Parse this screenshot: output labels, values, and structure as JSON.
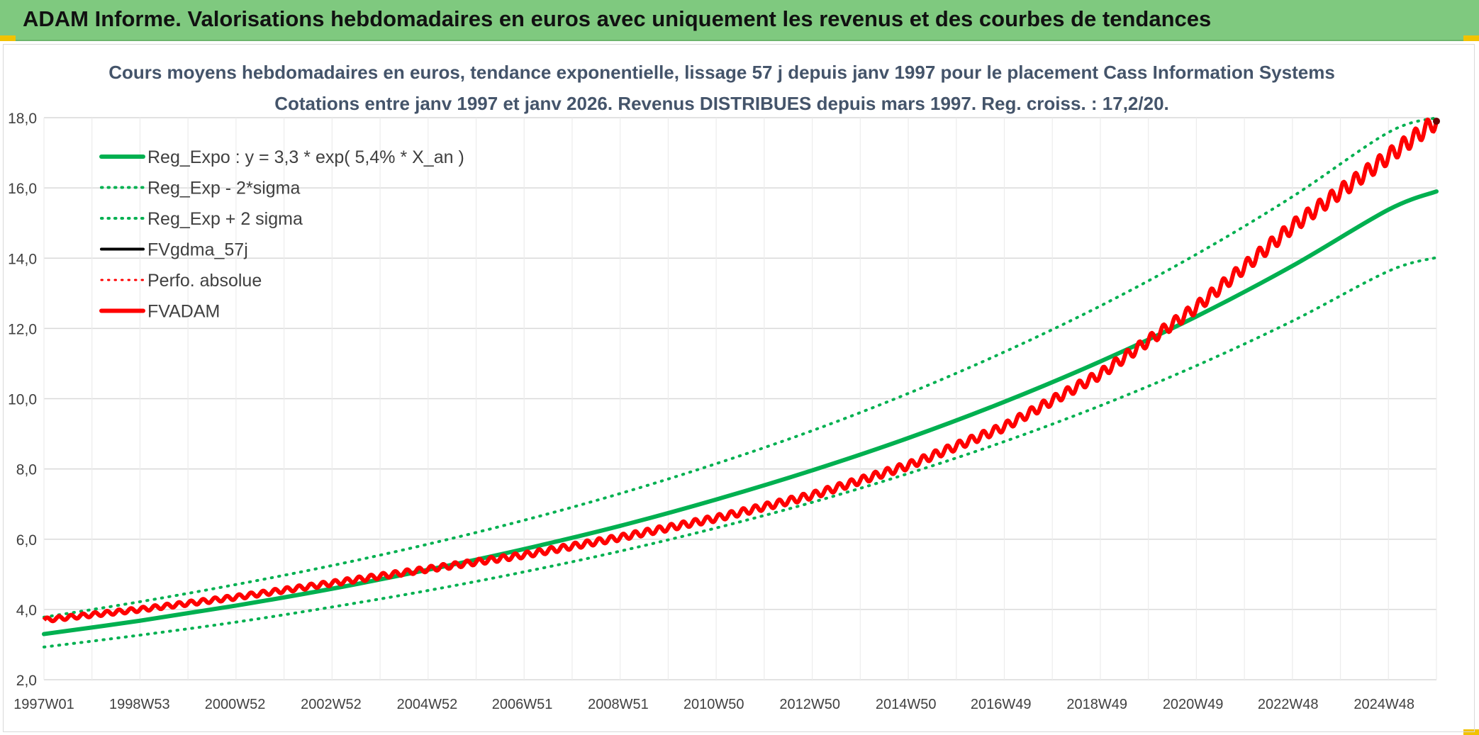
{
  "banner": {
    "title": "ADAM Informe. Valorisations hebdomadaires en euros avec uniquement les revenus et des courbes de tendances",
    "background": "#7fc97f"
  },
  "chart_data": {
    "type": "line",
    "title": "Cours moyens hebdomadaires en euros, tendance exponentielle, lissage 57 j depuis janv 1997 pour le placement Cass Information Systems",
    "subtitle": "Cotations entre janv 1997 et janv 2026. Revenus DISTRIBUES depuis mars 1997. Reg. croiss. : 17,2/20.",
    "xlabel": "",
    "ylabel": "",
    "ylim": [
      2.0,
      18.0
    ],
    "xlim": [
      1997.0,
      2026.0
    ],
    "yticks": [
      "2,0",
      "4,0",
      "6,0",
      "8,0",
      "10,0",
      "12,0",
      "14,0",
      "16,0",
      "18,0"
    ],
    "xticks": [
      {
        "label": "1997W01",
        "x": 1997.0
      },
      {
        "label": "1998W53",
        "x": 1998.99
      },
      {
        "label": "2000W52",
        "x": 2000.98
      },
      {
        "label": "2002W52",
        "x": 2002.98
      },
      {
        "label": "2004W52",
        "x": 2004.98
      },
      {
        "label": "2006W51",
        "x": 2006.96
      },
      {
        "label": "2008W51",
        "x": 2008.96
      },
      {
        "label": "2010W50",
        "x": 2010.95
      },
      {
        "label": "2012W50",
        "x": 2012.95
      },
      {
        "label": "2014W50",
        "x": 2014.95
      },
      {
        "label": "2016W49",
        "x": 2016.93
      },
      {
        "label": "2018W49",
        "x": 2018.93
      },
      {
        "label": "2020W49",
        "x": 2020.93
      },
      {
        "label": "2022W48",
        "x": 2022.91
      },
      {
        "label": "2024W48",
        "x": 2024.91
      }
    ],
    "grid": true,
    "legend_position": "top-left",
    "series": [
      {
        "name": "Reg_Expo : y = 3,3 * exp( 5,4% *  X_an )",
        "color": "#00b050",
        "style": "solid",
        "width": 6,
        "x": [
          1997,
          1999,
          2001,
          2003,
          2005,
          2007,
          2009,
          2011,
          2013,
          2015,
          2017,
          2019,
          2021,
          2023,
          2025,
          2026
        ],
        "values": [
          3.3,
          3.68,
          4.11,
          4.59,
          5.13,
          5.72,
          6.38,
          7.13,
          7.96,
          8.88,
          9.91,
          11.06,
          12.34,
          13.78,
          15.38,
          15.9
        ]
      },
      {
        "name": "Reg_Exp - 2*sigma",
        "color": "#00b050",
        "style": "dotted",
        "width": 4,
        "x": [
          1997,
          1999,
          2001,
          2003,
          2005,
          2007,
          2009,
          2011,
          2013,
          2015,
          2017,
          2019,
          2021,
          2023,
          2025,
          2026
        ],
        "values": [
          2.93,
          3.27,
          3.64,
          4.07,
          4.54,
          5.07,
          5.66,
          6.32,
          7.05,
          7.87,
          8.78,
          9.8,
          10.94,
          12.21,
          13.63,
          14.02
        ]
      },
      {
        "name": "Reg_Exp + 2 sigma",
        "color": "#00b050",
        "style": "dotted",
        "width": 4,
        "x": [
          1997,
          1999,
          2001,
          2003,
          2005,
          2007,
          2009,
          2011,
          2013,
          2015,
          2017,
          2019,
          2021,
          2023,
          2025,
          2026
        ],
        "values": [
          3.78,
          4.22,
          4.71,
          5.25,
          5.86,
          6.54,
          7.3,
          8.15,
          9.09,
          10.15,
          11.33,
          12.64,
          14.11,
          15.75,
          17.58,
          18.0
        ]
      },
      {
        "name": "FVgdma_57j",
        "color": "#000000",
        "style": "solid",
        "width": 4,
        "x": [],
        "values": []
      },
      {
        "name": "Perfo. absolue",
        "color": "#ff0000",
        "style": "dotted",
        "width": 3,
        "x": [],
        "values": []
      },
      {
        "name": "FVADAM",
        "color": "#ff0000",
        "style": "solid",
        "width": 6,
        "x": [
          1997,
          1999,
          2001,
          2003,
          2005,
          2007,
          2009,
          2011,
          2013,
          2015,
          2017,
          2019,
          2021,
          2023,
          2025,
          2026
        ],
        "values": [
          3.7,
          4.0,
          4.35,
          4.75,
          5.15,
          5.55,
          6.05,
          6.6,
          7.25,
          8.1,
          9.2,
          10.7,
          12.6,
          14.9,
          16.9,
          17.9
        ]
      }
    ]
  }
}
